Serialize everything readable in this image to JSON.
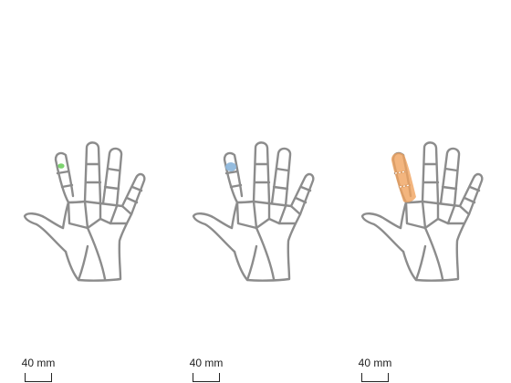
{
  "colors": {
    "outline": "#8c8c8c",
    "panel1_marker": "#6fcf5f",
    "panel2_marker": "#8fb8dc",
    "panel3_marker": "#f0a35e"
  },
  "panels": [
    {
      "scale_label": "40 mm",
      "marker_color": "#6fcf5f",
      "marker_region": "index fingertip"
    },
    {
      "scale_label": "40 mm",
      "marker_color": "#8fb8dc",
      "marker_region": "index fingertip"
    },
    {
      "scale_label": "40 mm",
      "marker_color": "#f0a35e",
      "marker_region": "index finger"
    }
  ]
}
